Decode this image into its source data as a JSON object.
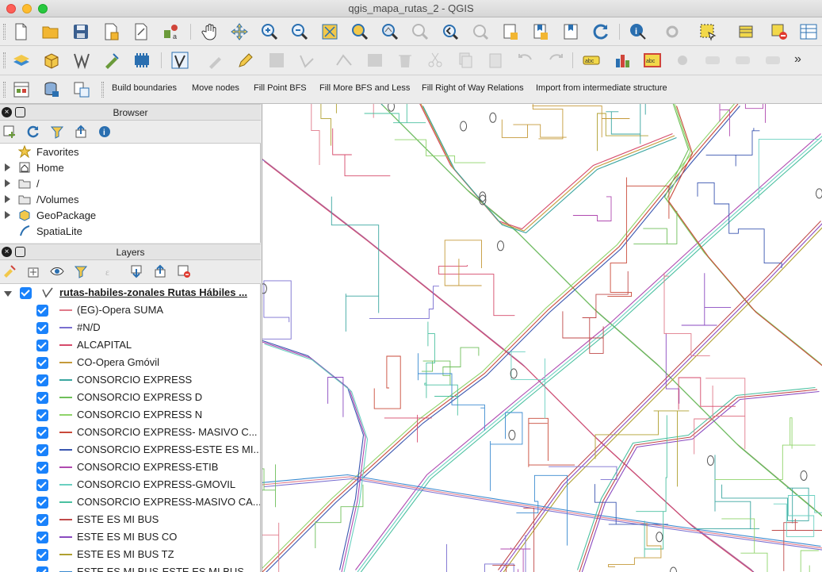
{
  "window": {
    "title": "qgis_mapa_rutas_2 - QGIS"
  },
  "toolbar3": {
    "build_boundaries": "Build boundaries",
    "move_nodes": "Move nodes",
    "fill_point_bfs": "Fill Point BFS",
    "fill_more_bfs": "Fill More BFS and Less",
    "fill_right_of_way": "Fill Right of Way Relations",
    "import_intermediate": "Import from intermediate structure"
  },
  "browser": {
    "title": "Browser",
    "items": [
      {
        "label": "Favorites",
        "icon": "star-icon",
        "expandable": false
      },
      {
        "label": "Home",
        "icon": "home-icon",
        "expandable": true
      },
      {
        "label": "/",
        "icon": "folder-icon",
        "expandable": true
      },
      {
        "label": "/Volumes",
        "icon": "folder-icon",
        "expandable": true
      },
      {
        "label": "GeoPackage",
        "icon": "geopackage-icon",
        "expandable": true
      },
      {
        "label": "SpatiaLite",
        "icon": "spatialite-icon",
        "expandable": false
      }
    ]
  },
  "layers": {
    "title": "Layers",
    "group": {
      "label": "rutas-habiles-zonales Rutas Hábiles ...",
      "checked": true
    },
    "items": [
      {
        "label": "(EG)-Opera SUMA",
        "color": "#e07a8a",
        "checked": true
      },
      {
        "label": "#N/D",
        "color": "#7a6fd0",
        "checked": true
      },
      {
        "label": "ALCAPITAL",
        "color": "#d64a6a",
        "checked": true
      },
      {
        "label": "CO-Opera Gmóvil",
        "color": "#c59a3a",
        "checked": true
      },
      {
        "label": "CONSORCIO EXPRESS",
        "color": "#3aa6a0",
        "checked": true
      },
      {
        "label": "CONSORCIO EXPRESS D",
        "color": "#6fbf5a",
        "checked": true
      },
      {
        "label": "CONSORCIO EXPRESS N",
        "color": "#8fd46a",
        "checked": true
      },
      {
        "label": "CONSORCIO EXPRESS- MASIVO C...",
        "color": "#c94a3a",
        "checked": true
      },
      {
        "label": "CONSORCIO EXPRESS-ESTE ES MI...",
        "color": "#3a56b0",
        "checked": true
      },
      {
        "label": "CONSORCIO EXPRESS-ETIB",
        "color": "#b04ab0",
        "checked": true
      },
      {
        "label": "CONSORCIO EXPRESS-GMOVIL",
        "color": "#6ad0c0",
        "checked": true
      },
      {
        "label": "CONSORCIO EXPRESS-MASIVO CA...",
        "color": "#4ac0a0",
        "checked": true
      },
      {
        "label": "ESTE ES MI BUS",
        "color": "#c04a4a",
        "checked": true
      },
      {
        "label": "ESTE ES MI BUS CO",
        "color": "#8a4ac0",
        "checked": true
      },
      {
        "label": "ESTE ES MI BUS TZ",
        "color": "#b0a030",
        "checked": true
      },
      {
        "label": "ESTE ES MI BUS-ESTE ES MI BUS",
        "color": "#3a8ad0",
        "checked": true
      }
    ]
  }
}
